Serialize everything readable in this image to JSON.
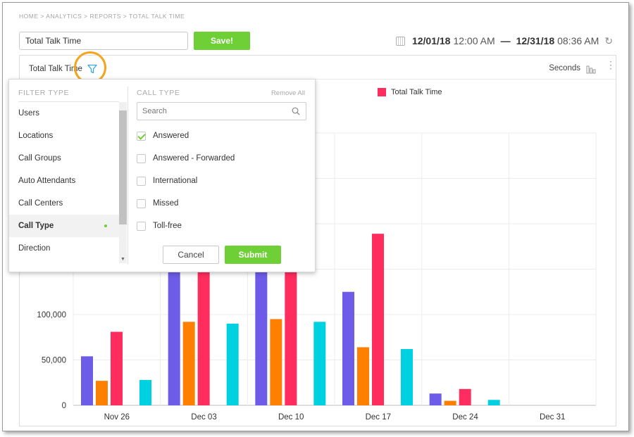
{
  "breadcrumb": "HOME > ANALYTICS > REPORTS > TOTAL TALK TIME",
  "report_name": {
    "value": "Total Talk Time"
  },
  "save_label": "Save!",
  "date_range": {
    "start_date": "12/01/18",
    "start_time": "12:00 AM",
    "separator": "—",
    "end_date": "12/31/18",
    "end_time": "08:36 AM"
  },
  "card": {
    "title": "Total Talk Time",
    "units": "Seconds"
  },
  "filter_panel": {
    "filter_type_header": "FILTER TYPE",
    "call_type_header": "CALL TYPE",
    "remove_all": "Remove All",
    "filter_types": [
      {
        "label": "Users",
        "active": false
      },
      {
        "label": "Locations",
        "active": false
      },
      {
        "label": "Call Groups",
        "active": false
      },
      {
        "label": "Auto Attendants",
        "active": false
      },
      {
        "label": "Call Centers",
        "active": false
      },
      {
        "label": "Call Type",
        "active": true
      },
      {
        "label": "Direction",
        "active": false
      }
    ],
    "search_placeholder": "Search",
    "call_types": [
      {
        "label": "Answered",
        "checked": true
      },
      {
        "label": "Answered - Forwarded",
        "checked": false
      },
      {
        "label": "International",
        "checked": false
      },
      {
        "label": "Missed",
        "checked": false
      },
      {
        "label": "Toll-free",
        "checked": false
      }
    ],
    "cancel_label": "Cancel",
    "submit_label": "Submit"
  },
  "colors": {
    "accent_green": "#6fcf36",
    "highlight_ring": "#f4a51b"
  },
  "chart_data": {
    "type": "bar",
    "categories": [
      "Nov 26",
      "Dec 03",
      "Dec 10",
      "Dec 17",
      "Dec 24",
      "Dec 31"
    ],
    "y_tick_labels": [
      "0",
      "50,000",
      "100,000"
    ],
    "ylim": [
      0,
      300000
    ],
    "legend": {
      "entries": [
        "Total Talk Time"
      ],
      "placement": "top-center"
    },
    "grid": true,
    "series": [
      {
        "color": "#6c5ce7",
        "values": [
          54000,
          150000,
          150000,
          125000,
          13000,
          0
        ]
      },
      {
        "color": "#ff7f00",
        "values": [
          27000,
          92000,
          95000,
          64000,
          5000,
          0
        ]
      },
      {
        "name": "Total Talk Time",
        "color": "#ff2c5e",
        "values": [
          81000,
          150000,
          150000,
          189000,
          18000,
          0
        ]
      },
      {
        "color": "#00d1e0",
        "values": [
          28000,
          90000,
          92000,
          62000,
          6000,
          0
        ]
      }
    ]
  }
}
